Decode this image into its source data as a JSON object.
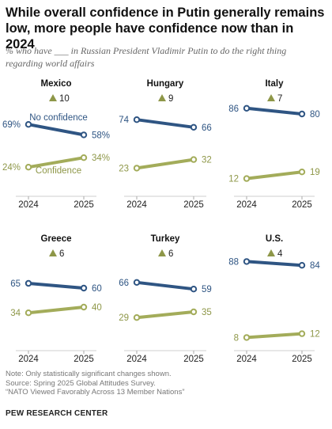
{
  "title": "While overall confidence in Putin generally remains low, more people have confidence now than in 2024",
  "subtitle": "% who have ___ in Russian President Vladimir Putin to do the right thing regarding world affairs",
  "colors": {
    "no_confidence": "#2f5583",
    "confidence": "#a3ac5a",
    "no_confidence_text": "#2f5583",
    "confidence_text": "#8e9748",
    "triangle": "#8e9748"
  },
  "chart_data": [
    {
      "type": "line",
      "title": "Mexico",
      "change": "10",
      "x": [
        "2024",
        "2025"
      ],
      "ylim": [
        0,
        100
      ],
      "series": [
        {
          "name": "No confidence",
          "values": [
            69,
            58
          ],
          "labels": [
            "69%",
            "58%"
          ]
        },
        {
          "name": "Confidence",
          "values": [
            24,
            34
          ],
          "labels": [
            "24%",
            "34%"
          ]
        }
      ]
    },
    {
      "type": "line",
      "title": "Hungary",
      "change": "9",
      "x": [
        "2024",
        "2025"
      ],
      "ylim": [
        0,
        100
      ],
      "series": [
        {
          "values": [
            74,
            66
          ],
          "labels": [
            "74",
            "66"
          ]
        },
        {
          "values": [
            23,
            32
          ],
          "labels": [
            "23",
            "32"
          ]
        }
      ]
    },
    {
      "type": "line",
      "title": "Italy",
      "change": "7",
      "x": [
        "2024",
        "2025"
      ],
      "ylim": [
        0,
        100
      ],
      "series": [
        {
          "values": [
            86,
            80
          ],
          "labels": [
            "86",
            "80"
          ]
        },
        {
          "values": [
            12,
            19
          ],
          "labels": [
            "12",
            "19"
          ]
        }
      ]
    },
    {
      "type": "line",
      "title": "Greece",
      "change": "6",
      "x": [
        "2024",
        "2025"
      ],
      "ylim": [
        0,
        100
      ],
      "series": [
        {
          "values": [
            65,
            60
          ],
          "labels": [
            "65",
            "60"
          ]
        },
        {
          "values": [
            34,
            40
          ],
          "labels": [
            "34",
            "40"
          ]
        }
      ]
    },
    {
      "type": "line",
      "title": "Turkey",
      "change": "6",
      "x": [
        "2024",
        "2025"
      ],
      "ylim": [
        0,
        100
      ],
      "series": [
        {
          "values": [
            66,
            59
          ],
          "labels": [
            "66",
            "59"
          ]
        },
        {
          "values": [
            29,
            35
          ],
          "labels": [
            "29",
            "35"
          ]
        }
      ]
    },
    {
      "type": "line",
      "title": "U.S.",
      "change": "4",
      "x": [
        "2024",
        "2025"
      ],
      "ylim": [
        0,
        100
      ],
      "series": [
        {
          "values": [
            88,
            84
          ],
          "labels": [
            "88",
            "84"
          ]
        },
        {
          "values": [
            8,
            12
          ],
          "labels": [
            "8",
            "12"
          ]
        }
      ]
    }
  ],
  "notes": [
    "Note: Only statistically significant changes shown.",
    "Source: Spring 2025 Global Attitudes Survey.",
    "“NATO Viewed Favorably Across 13 Member Nations”"
  ],
  "org": "PEW RESEARCH CENTER"
}
